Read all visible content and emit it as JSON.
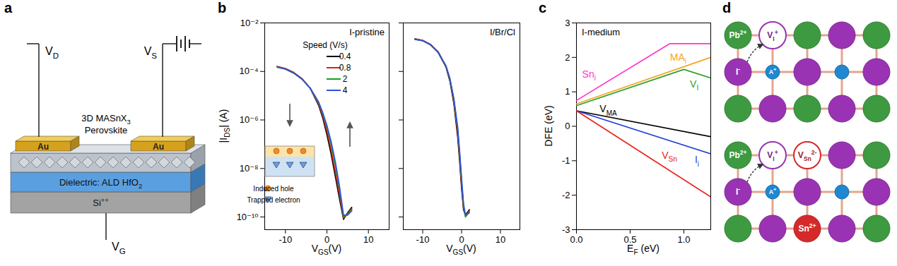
{
  "panel_labels": [
    "a",
    "b",
    "c",
    "d"
  ],
  "schematic_a": {
    "drain": {
      "text": "V",
      "sub": "D"
    },
    "source": {
      "text": "V",
      "sub": "S"
    },
    "gate": {
      "text": "V",
      "sub": "G"
    },
    "electrode": "Au",
    "channel": [
      {
        "text": "3D MASnX",
        "sub": "3"
      },
      {
        "text": "Perovskite"
      }
    ],
    "dielectric": {
      "text": "Dielectric: ALD HfO",
      "sub": "2"
    },
    "substrate": {
      "text": "Si",
      "sup": "++"
    }
  },
  "chart_data": [
    {
      "type": "line",
      "title": "I-pristine",
      "xlabel": {
        "text": "V",
        "sub": "GS",
        "rest": "(V)"
      },
      "ylabel": {
        "text": "|I",
        "sub": "DS",
        "rest": "| (A)"
      },
      "log": "y",
      "xlim": [
        -15,
        15
      ],
      "xticks": [
        -10,
        0,
        10
      ],
      "ylim": [
        3e-11,
        0.01
      ],
      "yticks": [
        {
          "value": 1e-10,
          "label": "10⁻¹⁰"
        },
        {
          "value": 1e-08,
          "label": "10⁻⁸"
        },
        {
          "value": 1e-06,
          "label": "10⁻⁶"
        },
        {
          "value": 0.0001,
          "label": "10⁻⁴"
        },
        {
          "value": 0.01,
          "label": "10⁻²"
        }
      ],
      "legend": "top-right",
      "legend_title": "Speed (V/s)",
      "annotations": [
        "Induced hole",
        "Trapped electron"
      ],
      "x": [
        -12,
        -10,
        -8,
        -6,
        -4,
        -2,
        -1,
        0,
        1,
        2,
        3,
        4,
        5,
        6
      ],
      "series": [
        {
          "name": "0.4",
          "color": "#000000",
          "values": [
            0.00016,
            0.00013,
            9e-05,
            5e-05,
            2e-05,
            4e-06,
            1.2e-06,
            2.5e-07,
            4e-08,
            5e-09,
            6e-10,
            8e-11,
            1.5e-10,
            2.5e-10
          ]
        },
        {
          "name": "0.8",
          "color": "#e41a1c",
          "values": [
            0.00016,
            0.00013,
            9e-05,
            5e-05,
            2e-05,
            4.5e-06,
            1.5e-06,
            3.5e-07,
            6e-08,
            8e-09,
            9e-10,
            9e-11,
            1.4e-10,
            2.2e-10
          ]
        },
        {
          "name": "2",
          "color": "#1a9e1a",
          "values": [
            0.00015,
            0.000125,
            8.5e-05,
            4.8e-05,
            2e-05,
            5e-06,
            1.8e-06,
            5e-07,
            1e-07,
            1.5e-08,
            1.5e-09,
            1e-10,
            1.3e-10,
            2e-10
          ]
        },
        {
          "name": "4",
          "color": "#3050e0",
          "values": [
            0.00015,
            0.000125,
            8.5e-05,
            4.8e-05,
            2e-05,
            5.5e-06,
            2e-06,
            6e-07,
            1.3e-07,
            2e-08,
            2e-09,
            1.2e-10,
            1.2e-10,
            1.8e-10
          ]
        }
      ]
    },
    {
      "type": "line",
      "title": "I/Br/Cl",
      "xlabel": {
        "text": "V",
        "sub": "GS",
        "rest": "(V)"
      },
      "log": "y",
      "tick_labels": "x",
      "xlim": [
        -15,
        15
      ],
      "xticks": [
        -10,
        0,
        10
      ],
      "ylim": [
        3e-11,
        0.01
      ],
      "yticks": [
        1e-10,
        1e-08,
        1e-06,
        0.0001,
        0.01
      ],
      "x": [
        -12,
        -10,
        -8,
        -6,
        -4,
        -3,
        -2,
        -1,
        -0.5,
        0,
        0.5,
        1,
        2
      ],
      "series": [
        {
          "color": "#000000",
          "values": [
            0.0022,
            0.0019,
            0.0013,
            0.0006,
            0.00015,
            4e-05,
            5e-06,
            2e-07,
            2e-08,
            1.5e-09,
            2e-10,
            1.2e-10,
            2e-10
          ]
        },
        {
          "color": "#e41a1c",
          "values": [
            0.0022,
            0.0019,
            0.0013,
            0.00065,
            0.00016,
            4.5e-05,
            6e-06,
            3e-07,
            3e-08,
            2e-09,
            2.5e-10,
            1.1e-10,
            1.8e-10
          ]
        },
        {
          "color": "#1a9e1a",
          "values": [
            0.0021,
            0.00185,
            0.00125,
            0.0006,
            0.00016,
            5e-05,
            7e-06,
            4e-07,
            4e-08,
            3e-09,
            3e-10,
            1e-10,
            1.6e-10
          ]
        },
        {
          "color": "#3050e0",
          "values": [
            0.0021,
            0.00185,
            0.00125,
            0.0006,
            0.00017,
            5e-05,
            8e-06,
            5e-07,
            5e-08,
            4e-09,
            3.5e-10,
            1.2e-10,
            1.5e-10
          ]
        }
      ]
    },
    {
      "type": "line",
      "title": "I-medium",
      "xlabel": {
        "text": "E",
        "sub": "F",
        "rest": " (eV)"
      },
      "ylabel": {
        "text": "DFE (eV)"
      },
      "xlim": [
        0,
        1.25
      ],
      "xticks": [
        {
          "value": 0,
          "label": "0.0"
        },
        {
          "value": 0.5,
          "label": "0.5"
        },
        {
          "value": 1,
          "label": "1.0"
        }
      ],
      "ylim": [
        -3,
        3
      ],
      "yticks": [
        -3,
        -2,
        -1,
        0,
        1,
        2,
        3
      ],
      "series": [
        {
          "name": "Sn",
          "sub": "i",
          "color": "#ff33cc",
          "x": [
            0,
            0.87,
            1.25
          ],
          "values": [
            0.75,
            2.4,
            2.4
          ]
        },
        {
          "name": "MA",
          "sub": "i",
          "color": "#f5a623",
          "x": [
            0,
            1.25
          ],
          "values": [
            0.65,
            2.0
          ]
        },
        {
          "name": "V",
          "sub": "I",
          "color": "#2ca02c",
          "x": [
            0,
            1.0,
            1.25
          ],
          "values": [
            0.6,
            1.65,
            1.4
          ]
        },
        {
          "name": "V",
          "sub": "MA",
          "color": "#000000",
          "x": [
            0,
            1.25
          ],
          "values": [
            0.45,
            -0.3
          ]
        },
        {
          "name": "I",
          "sub": "i",
          "color": "#1f3fd1",
          "x": [
            0,
            1.25
          ],
          "values": [
            0.45,
            -0.8
          ]
        },
        {
          "name": "V",
          "sub": "Sn",
          "color": "#e8231a",
          "x": [
            0,
            1.25
          ],
          "values": [
            0.45,
            -2.05
          ]
        }
      ]
    }
  ],
  "lattice_d": [
    {
      "rows": [
        [
          {
            "color": "#3d9a40",
            "label": {
              "text": "Pb",
              "sup": "2+"
            }
          },
          {
            "color": "#9933b3",
            "marker": "open",
            "label": {
              "text": "V",
              "sub": "I",
              "sup": "+"
            }
          },
          {
            "color": "#3d9a40"
          },
          {
            "color": "#9933b3"
          },
          {
            "color": "#3d9a40"
          }
        ],
        [
          {
            "color": "#9933b3",
            "label": {
              "text": "I",
              "sup": "-"
            }
          },
          {
            "color": "#1f88d0",
            "marker": "small",
            "label": {
              "text": "A",
              "sup": "+"
            }
          },
          {
            "color": "#9933b3"
          },
          {
            "color": "#1f88d0",
            "marker": "small"
          },
          {
            "color": "#9933b3"
          }
        ],
        [
          {
            "color": "#3d9a40"
          },
          {
            "color": "#9933b3"
          },
          {
            "color": "#3d9a40"
          },
          {
            "color": "#9933b3"
          },
          {
            "color": "#3d9a40"
          }
        ]
      ]
    },
    {
      "rows": [
        [
          {
            "color": "#3d9a40",
            "label": {
              "text": "Pb",
              "sup": "2+"
            }
          },
          {
            "color": "#9933b3",
            "marker": "open",
            "label": {
              "text": "V",
              "sub": "I",
              "sup": "+"
            }
          },
          {
            "color": "#d42a2a",
            "marker": "open",
            "label": {
              "text": "V",
              "sub": "Sn",
              "sup": "2-"
            }
          },
          {
            "color": "#9933b3"
          },
          {
            "color": "#3d9a40"
          }
        ],
        [
          {
            "color": "#9933b3",
            "label": {
              "text": "I",
              "sup": "-"
            }
          },
          {
            "color": "#1f88d0",
            "marker": "small",
            "label": {
              "text": "A",
              "sup": "+"
            }
          },
          {
            "color": "#9933b3"
          },
          {
            "color": "#1f88d0",
            "marker": "small"
          },
          {
            "color": "#9933b3"
          }
        ],
        [
          {
            "color": "#3d9a40"
          },
          {
            "color": "#9933b3"
          },
          {
            "color": "#d42a2a",
            "label": {
              "text": "Sn",
              "sup": "2+"
            }
          },
          {
            "color": "#9933b3"
          },
          {
            "color": "#3d9a40"
          }
        ]
      ]
    }
  ]
}
